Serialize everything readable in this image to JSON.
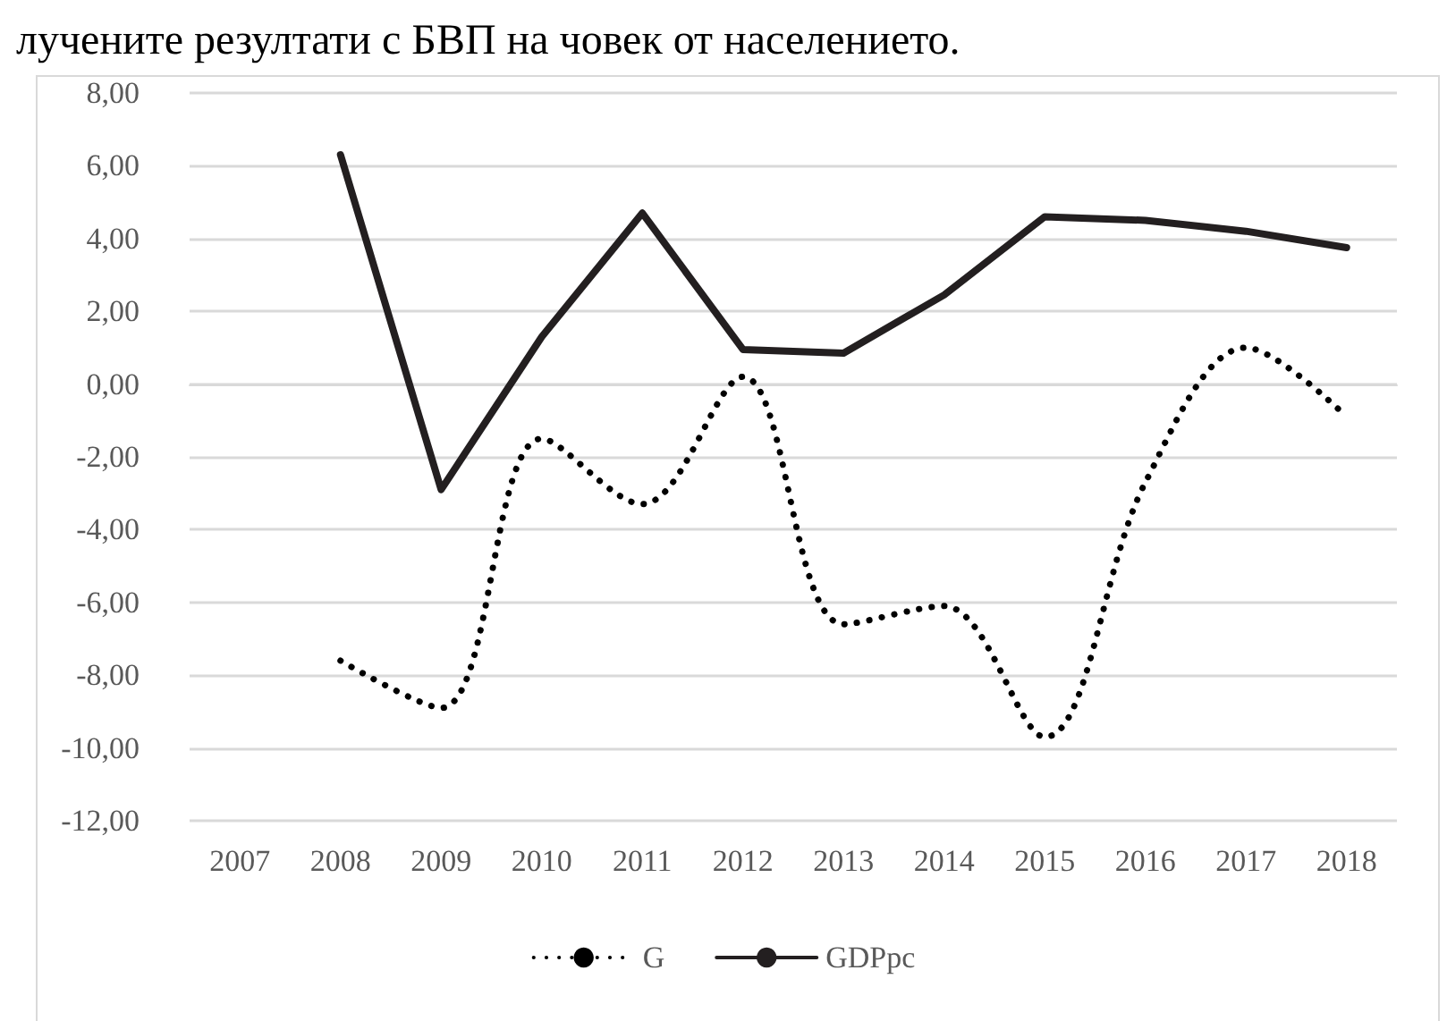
{
  "chart_data": {
    "type": "line",
    "annotations": [
      "лучените резултати с БВП на човек от населението."
    ],
    "categories": [
      "2007",
      "2008",
      "2009",
      "2010",
      "2011",
      "2012",
      "2013",
      "2014",
      "2015",
      "2016",
      "2017",
      "2018"
    ],
    "series": [
      {
        "name": "G",
        "color": "#000000",
        "line_style": "dotted",
        "values": [
          null,
          -7.6,
          -8.9,
          -1.5,
          -3.3,
          0.2,
          -6.6,
          -6.1,
          -9.7,
          -2.7,
          1.0,
          -0.9
        ]
      },
      {
        "name": "GDPpc",
        "color": "#231f20",
        "line_style": "solid",
        "values": [
          null,
          6.3,
          -2.9,
          1.3,
          4.7,
          0.95,
          0.85,
          2.45,
          4.6,
          4.5,
          4.2,
          3.75
        ]
      }
    ],
    "ylim": [
      -12,
      8
    ],
    "yticks": [
      {
        "value": 8,
        "label": "8,00"
      },
      {
        "value": 6,
        "label": "6,00"
      },
      {
        "value": 4,
        "label": "4,00"
      },
      {
        "value": 2,
        "label": "2,00"
      },
      {
        "value": 0,
        "label": "0,00"
      },
      {
        "value": -2,
        "label": "-2,00"
      },
      {
        "value": -4,
        "label": "-4,00"
      },
      {
        "value": -6,
        "label": "-6,00"
      },
      {
        "value": -8,
        "label": "-8,00"
      },
      {
        "value": -10,
        "label": "-10,00"
      },
      {
        "value": -12,
        "label": "-12,00"
      }
    ],
    "grid": "y",
    "legend": "bottom",
    "marker": "none"
  }
}
